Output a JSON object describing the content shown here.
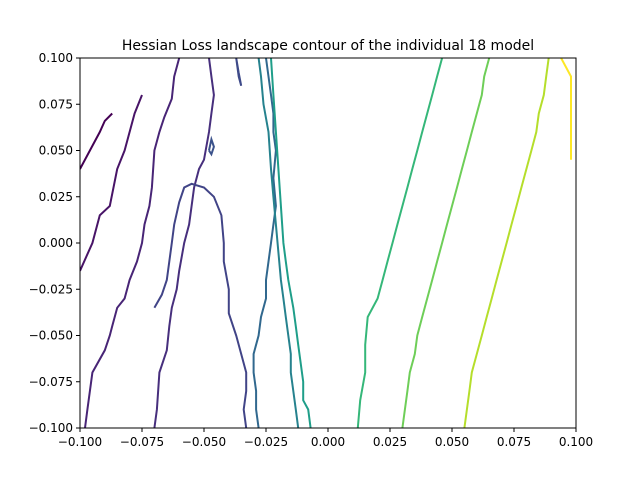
{
  "chart_data": {
    "type": "contour",
    "title": "Hessian Loss landscape contour of the individual 18 model",
    "xlabel": "",
    "ylabel": "",
    "xlim": [
      -0.1,
      0.1
    ],
    "ylim": [
      -0.1,
      0.1
    ],
    "grid": false,
    "legend": "none",
    "colormap": "viridis",
    "x_ticks": [
      "−0.100",
      "−0.075",
      "−0.050",
      "−0.025",
      "0.000",
      "0.025",
      "0.050",
      "0.075",
      "0.100"
    ],
    "y_ticks": [
      "0.100",
      "0.075",
      "0.050",
      "0.025",
      "0.000",
      "−0.025",
      "−0.050",
      "−0.075",
      "−0.100"
    ],
    "x_tick_values": [
      -0.1,
      -0.075,
      -0.05,
      -0.025,
      0.0,
      0.025,
      0.05,
      0.075,
      0.1
    ],
    "y_tick_values": [
      0.1,
      0.075,
      0.05,
      0.025,
      0.0,
      -0.025,
      -0.05,
      -0.075,
      -0.1
    ],
    "contours": [
      {
        "color": "#440154",
        "points": [
          [
            -0.1,
            0.04
          ],
          [
            -0.096,
            0.05
          ],
          [
            -0.092,
            0.06
          ],
          [
            -0.09,
            0.066
          ],
          [
            -0.087,
            0.07
          ]
        ]
      },
      {
        "color": "#481467",
        "points": [
          [
            -0.1,
            -0.015
          ],
          [
            -0.095,
            0.0
          ],
          [
            -0.092,
            0.015
          ],
          [
            -0.088,
            0.02
          ],
          [
            -0.085,
            0.04
          ],
          [
            -0.082,
            0.05
          ],
          [
            -0.08,
            0.06
          ],
          [
            -0.078,
            0.07
          ],
          [
            -0.075,
            0.08
          ]
        ]
      },
      {
        "color": "#482576",
        "points": [
          [
            -0.098,
            -0.1
          ],
          [
            -0.097,
            -0.09
          ],
          [
            -0.095,
            -0.07
          ],
          [
            -0.09,
            -0.058
          ],
          [
            -0.088,
            -0.05
          ],
          [
            -0.087,
            -0.045
          ],
          [
            -0.085,
            -0.035
          ],
          [
            -0.082,
            -0.03
          ],
          [
            -0.08,
            -0.02
          ],
          [
            -0.077,
            -0.01
          ],
          [
            -0.075,
            0.0
          ],
          [
            -0.074,
            0.01
          ],
          [
            -0.072,
            0.02
          ],
          [
            -0.071,
            0.03
          ],
          [
            -0.07,
            0.05
          ],
          [
            -0.068,
            0.06
          ],
          [
            -0.066,
            0.068
          ],
          [
            -0.063,
            0.078
          ],
          [
            -0.062,
            0.09
          ],
          [
            -0.06,
            0.1
          ]
        ]
      },
      {
        "color": "#472f7d",
        "points": [
          [
            -0.07,
            -0.1
          ],
          [
            -0.069,
            -0.09
          ],
          [
            -0.068,
            -0.07
          ],
          [
            -0.065,
            -0.058
          ],
          [
            -0.064,
            -0.045
          ],
          [
            -0.063,
            -0.035
          ],
          [
            -0.061,
            -0.025
          ],
          [
            -0.06,
            -0.015
          ],
          [
            -0.058,
            0.0
          ],
          [
            -0.056,
            0.01
          ],
          [
            -0.055,
            0.02
          ],
          [
            -0.054,
            0.03
          ],
          [
            -0.052,
            0.04
          ],
          [
            -0.05,
            0.045
          ],
          [
            -0.048,
            0.06
          ],
          [
            -0.047,
            0.07
          ],
          [
            -0.046,
            0.08
          ],
          [
            -0.047,
            0.09
          ],
          [
            -0.048,
            0.1
          ]
        ]
      },
      {
        "color": "#414487",
        "points": [
          [
            -0.033,
            -0.1
          ],
          [
            -0.034,
            -0.09
          ],
          [
            -0.033,
            -0.08
          ],
          [
            -0.033,
            -0.07
          ],
          [
            -0.035,
            -0.06
          ],
          [
            -0.037,
            -0.05
          ],
          [
            -0.04,
            -0.038
          ],
          [
            -0.04,
            -0.025
          ],
          [
            -0.042,
            -0.01
          ],
          [
            -0.042,
            0.0
          ],
          [
            -0.043,
            0.015
          ],
          [
            -0.046,
            0.025
          ],
          [
            -0.05,
            0.03
          ],
          [
            -0.055,
            0.032
          ],
          [
            -0.058,
            0.03
          ],
          [
            -0.06,
            0.022
          ],
          [
            -0.062,
            0.01
          ],
          [
            -0.063,
            0.0
          ],
          [
            -0.064,
            -0.01
          ],
          [
            -0.065,
            -0.02
          ],
          [
            -0.067,
            -0.028
          ],
          [
            -0.07,
            -0.035
          ]
        ]
      },
      {
        "color": "#3e4a89",
        "points": [
          [
            -0.037,
            0.1
          ],
          [
            -0.036,
            0.09
          ],
          [
            -0.035,
            0.085
          ],
          [
            -0.036,
            0.092
          ],
          [
            -0.037,
            0.1
          ]
        ]
      },
      {
        "color": "#3b528b",
        "points": [
          [
            -0.048,
            0.05
          ],
          [
            -0.047,
            0.056
          ],
          [
            -0.046,
            0.052
          ],
          [
            -0.047,
            0.048
          ],
          [
            -0.048,
            0.05
          ]
        ]
      },
      {
        "color": "#31688e",
        "points": [
          [
            -0.028,
            -0.1
          ],
          [
            -0.029,
            -0.09
          ],
          [
            -0.029,
            -0.08
          ],
          [
            -0.03,
            -0.07
          ],
          [
            -0.03,
            -0.06
          ],
          [
            -0.028,
            -0.05
          ],
          [
            -0.027,
            -0.04
          ],
          [
            -0.025,
            -0.03
          ],
          [
            -0.025,
            -0.02
          ],
          [
            -0.024,
            -0.01
          ],
          [
            -0.023,
            0.0
          ],
          [
            -0.022,
            0.01
          ],
          [
            -0.021,
            0.02
          ],
          [
            -0.022,
            0.035
          ],
          [
            -0.021,
            0.05
          ],
          [
            -0.022,
            0.06
          ],
          [
            -0.022,
            0.07
          ],
          [
            -0.023,
            0.08
          ],
          [
            -0.024,
            0.09
          ],
          [
            -0.025,
            0.1
          ]
        ]
      },
      {
        "color": "#26828e",
        "points": [
          [
            -0.012,
            -0.1
          ],
          [
            -0.013,
            -0.09
          ],
          [
            -0.014,
            -0.08
          ],
          [
            -0.015,
            -0.07
          ],
          [
            -0.015,
            -0.06
          ],
          [
            -0.016,
            -0.05
          ],
          [
            -0.017,
            -0.04
          ],
          [
            -0.018,
            -0.03
          ],
          [
            -0.019,
            -0.02
          ],
          [
            -0.02,
            -0.005
          ],
          [
            -0.021,
            0.01
          ],
          [
            -0.022,
            0.025
          ],
          [
            -0.023,
            0.04
          ],
          [
            -0.024,
            0.06
          ],
          [
            -0.026,
            0.075
          ],
          [
            -0.027,
            0.09
          ],
          [
            -0.028,
            0.1
          ]
        ]
      },
      {
        "color": "#1f9e89",
        "points": [
          [
            -0.007,
            -0.1
          ],
          [
            -0.008,
            -0.09
          ],
          [
            -0.01,
            -0.085
          ],
          [
            -0.01,
            -0.075
          ],
          [
            -0.011,
            -0.065
          ],
          [
            -0.012,
            -0.055
          ],
          [
            -0.013,
            -0.045
          ],
          [
            -0.014,
            -0.035
          ],
          [
            -0.016,
            -0.02
          ],
          [
            -0.017,
            -0.01
          ],
          [
            -0.018,
            0.0
          ],
          [
            -0.019,
            0.02
          ],
          [
            -0.02,
            0.04
          ],
          [
            -0.021,
            0.06
          ],
          [
            -0.022,
            0.08
          ],
          [
            -0.023,
            0.1
          ]
        ]
      },
      {
        "color": "#35b779",
        "points": [
          [
            0.012,
            -0.1
          ],
          [
            0.013,
            -0.085
          ],
          [
            0.015,
            -0.07
          ],
          [
            0.015,
            -0.055
          ],
          [
            0.016,
            -0.04
          ],
          [
            0.02,
            -0.03
          ],
          [
            0.022,
            -0.02
          ],
          [
            0.024,
            -0.01
          ],
          [
            0.026,
            0.0
          ],
          [
            0.028,
            0.01
          ],
          [
            0.03,
            0.02
          ],
          [
            0.032,
            0.03
          ],
          [
            0.034,
            0.04
          ],
          [
            0.036,
            0.05
          ],
          [
            0.038,
            0.06
          ],
          [
            0.04,
            0.07
          ],
          [
            0.042,
            0.08
          ],
          [
            0.044,
            0.09
          ],
          [
            0.046,
            0.1
          ]
        ]
      },
      {
        "color": "#6ece58",
        "points": [
          [
            0.03,
            -0.1
          ],
          [
            0.031,
            -0.09
          ],
          [
            0.032,
            -0.08
          ],
          [
            0.033,
            -0.07
          ],
          [
            0.035,
            -0.06
          ],
          [
            0.036,
            -0.05
          ],
          [
            0.038,
            -0.04
          ],
          [
            0.04,
            -0.03
          ],
          [
            0.042,
            -0.02
          ],
          [
            0.044,
            -0.01
          ],
          [
            0.046,
            0.0
          ],
          [
            0.048,
            0.01
          ],
          [
            0.05,
            0.02
          ],
          [
            0.052,
            0.03
          ],
          [
            0.054,
            0.04
          ],
          [
            0.056,
            0.05
          ],
          [
            0.058,
            0.06
          ],
          [
            0.06,
            0.07
          ],
          [
            0.062,
            0.08
          ],
          [
            0.063,
            0.09
          ],
          [
            0.065,
            0.1
          ]
        ]
      },
      {
        "color": "#b5de2b",
        "points": [
          [
            0.055,
            -0.1
          ],
          [
            0.056,
            -0.09
          ],
          [
            0.057,
            -0.08
          ],
          [
            0.058,
            -0.07
          ],
          [
            0.06,
            -0.06
          ],
          [
            0.062,
            -0.05
          ],
          [
            0.064,
            -0.04
          ],
          [
            0.066,
            -0.03
          ],
          [
            0.068,
            -0.02
          ],
          [
            0.07,
            -0.01
          ],
          [
            0.072,
            0.0
          ],
          [
            0.074,
            0.01
          ],
          [
            0.076,
            0.02
          ],
          [
            0.078,
            0.03
          ],
          [
            0.08,
            0.04
          ],
          [
            0.082,
            0.05
          ],
          [
            0.084,
            0.06
          ],
          [
            0.085,
            0.07
          ],
          [
            0.087,
            0.08
          ],
          [
            0.088,
            0.09
          ],
          [
            0.089,
            0.1
          ]
        ]
      },
      {
        "color": "#fde725",
        "points": [
          [
            0.098,
            0.045
          ],
          [
            0.098,
            0.06
          ],
          [
            0.098,
            0.075
          ],
          [
            0.098,
            0.09
          ],
          [
            0.094,
            0.1
          ]
        ]
      }
    ]
  }
}
